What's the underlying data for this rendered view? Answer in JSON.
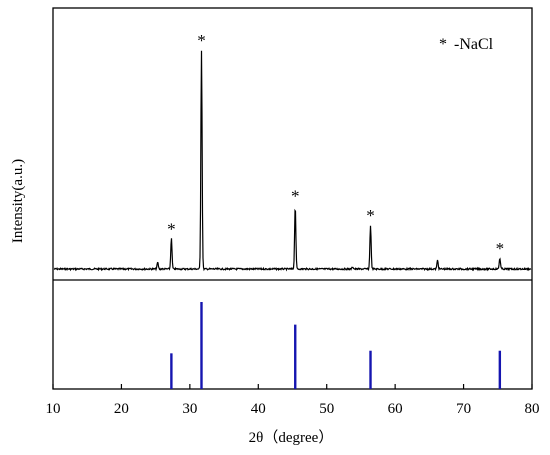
{
  "chart_data": {
    "type": "line",
    "xlabel": "2θ（degree）",
    "ylabel": "Intensity(a.u.)",
    "xlim": [
      10,
      80
    ],
    "x_ticks": [
      10,
      20,
      30,
      40,
      50,
      60,
      70,
      80
    ],
    "y_ticks_shown": false,
    "legend": {
      "marker": "*",
      "label": "-NaCl",
      "position": "top-right"
    },
    "grid": false,
    "panels": [
      {
        "name": "",
        "type": "line",
        "color": "#000000",
        "peaks": [
          {
            "x": 25.3,
            "rel_intensity": 0.03,
            "marked": false
          },
          {
            "x": 27.3,
            "rel_intensity": 0.14,
            "marked": true
          },
          {
            "x": 31.7,
            "rel_intensity": 1.0,
            "marked": true
          },
          {
            "x": 45.4,
            "rel_intensity": 0.29,
            "marked": true
          },
          {
            "x": 53.8,
            "rel_intensity": 0.01,
            "marked": false
          },
          {
            "x": 56.4,
            "rel_intensity": 0.2,
            "marked": true
          },
          {
            "x": 66.2,
            "rel_intensity": 0.04,
            "marked": false
          },
          {
            "x": 75.3,
            "rel_intensity": 0.05,
            "marked": true
          }
        ]
      },
      {
        "name": "",
        "type": "bar",
        "color": "#1515b0",
        "x": [
          27.3,
          31.7,
          45.4,
          56.4,
          75.3
        ],
        "rel_intensity": [
          0.41,
          1.0,
          0.74,
          0.44,
          0.44
        ]
      }
    ]
  }
}
